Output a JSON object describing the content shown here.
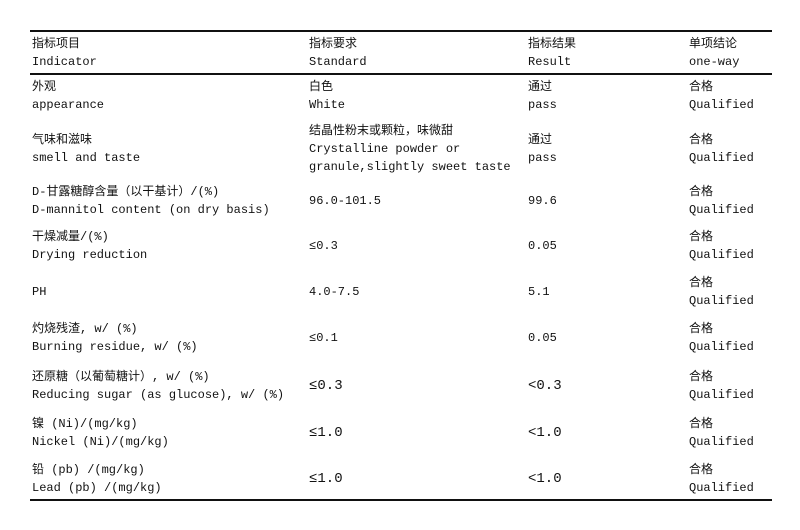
{
  "header": [
    {
      "zh": "指标项目",
      "en": "Indicator"
    },
    {
      "zh": "指标要求",
      "en": "Standard"
    },
    {
      "zh": "指标结果",
      "en": "Result"
    },
    {
      "zh": "单项结论",
      "en": "one-way"
    }
  ],
  "rows": [
    {
      "indicator_zh": "外观",
      "indicator_en": "appearance",
      "standard": [
        "白色",
        "White"
      ],
      "result": [
        "通过",
        "pass"
      ],
      "conclusion_zh": "合格",
      "conclusion_en": "Qualified"
    },
    {
      "indicator_zh": "气味和滋味",
      "indicator_en": "smell and taste",
      "standard": [
        "结晶性粉末或颗粒，味微甜",
        "Crystalline powder or",
        "granule,slightly sweet taste"
      ],
      "result": [
        "通过",
        "pass"
      ],
      "conclusion_zh": "合格",
      "conclusion_en": "Qualified"
    },
    {
      "indicator_zh": "D-甘露糖醇含量（以干基计）/(%)",
      "indicator_en": "D-mannitol content (on dry basis)",
      "standard": [
        "96.0-101.5"
      ],
      "result": [
        "99.6"
      ],
      "conclusion_zh": "合格",
      "conclusion_en": "Qualified"
    },
    {
      "indicator_zh": "干燥减量/(%)",
      "indicator_en": "Drying reduction",
      "standard": [
        "≤0.3"
      ],
      "result": [
        "0.05"
      ],
      "conclusion_zh": "合格",
      "conclusion_en": "Qualified"
    },
    {
      "indicator_zh": "PH",
      "indicator_en": "",
      "standard": [
        "4.0-7.5"
      ],
      "result": [
        "5.1"
      ],
      "conclusion_zh": "合格",
      "conclusion_en": "Qualified"
    },
    {
      "indicator_zh": "灼烧残渣, w/ (%)",
      "indicator_en": "Burning residue, w/ (%)",
      "standard": [
        "≤0.1"
      ],
      "result": [
        "0.05"
      ],
      "conclusion_zh": "合格",
      "conclusion_en": "Qualified"
    },
    {
      "indicator_zh": "还原糖（以葡萄糖计）, w/ (%)",
      "indicator_en": "Reducing sugar (as glucose), w/ (%)",
      "standard": [
        "≤0.3"
      ],
      "result": [
        "<0.3"
      ],
      "conclusion_zh": "合格",
      "conclusion_en": "Qualified"
    },
    {
      "indicator_zh": "镍 (Ni)/(mg/kg)",
      "indicator_en": "Nickel (Ni)/(mg/kg)",
      "standard": [
        "≤1.0"
      ],
      "result": [
        "<1.0"
      ],
      "conclusion_zh": "合格",
      "conclusion_en": "Qualified"
    },
    {
      "indicator_zh": "铅 (pb) /(mg/kg)",
      "indicator_en": "Lead (pb) /(mg/kg)",
      "standard": [
        "≤1.0"
      ],
      "result": [
        "<1.0"
      ],
      "conclusion_zh": "合格",
      "conclusion_en": "Qualified"
    }
  ]
}
